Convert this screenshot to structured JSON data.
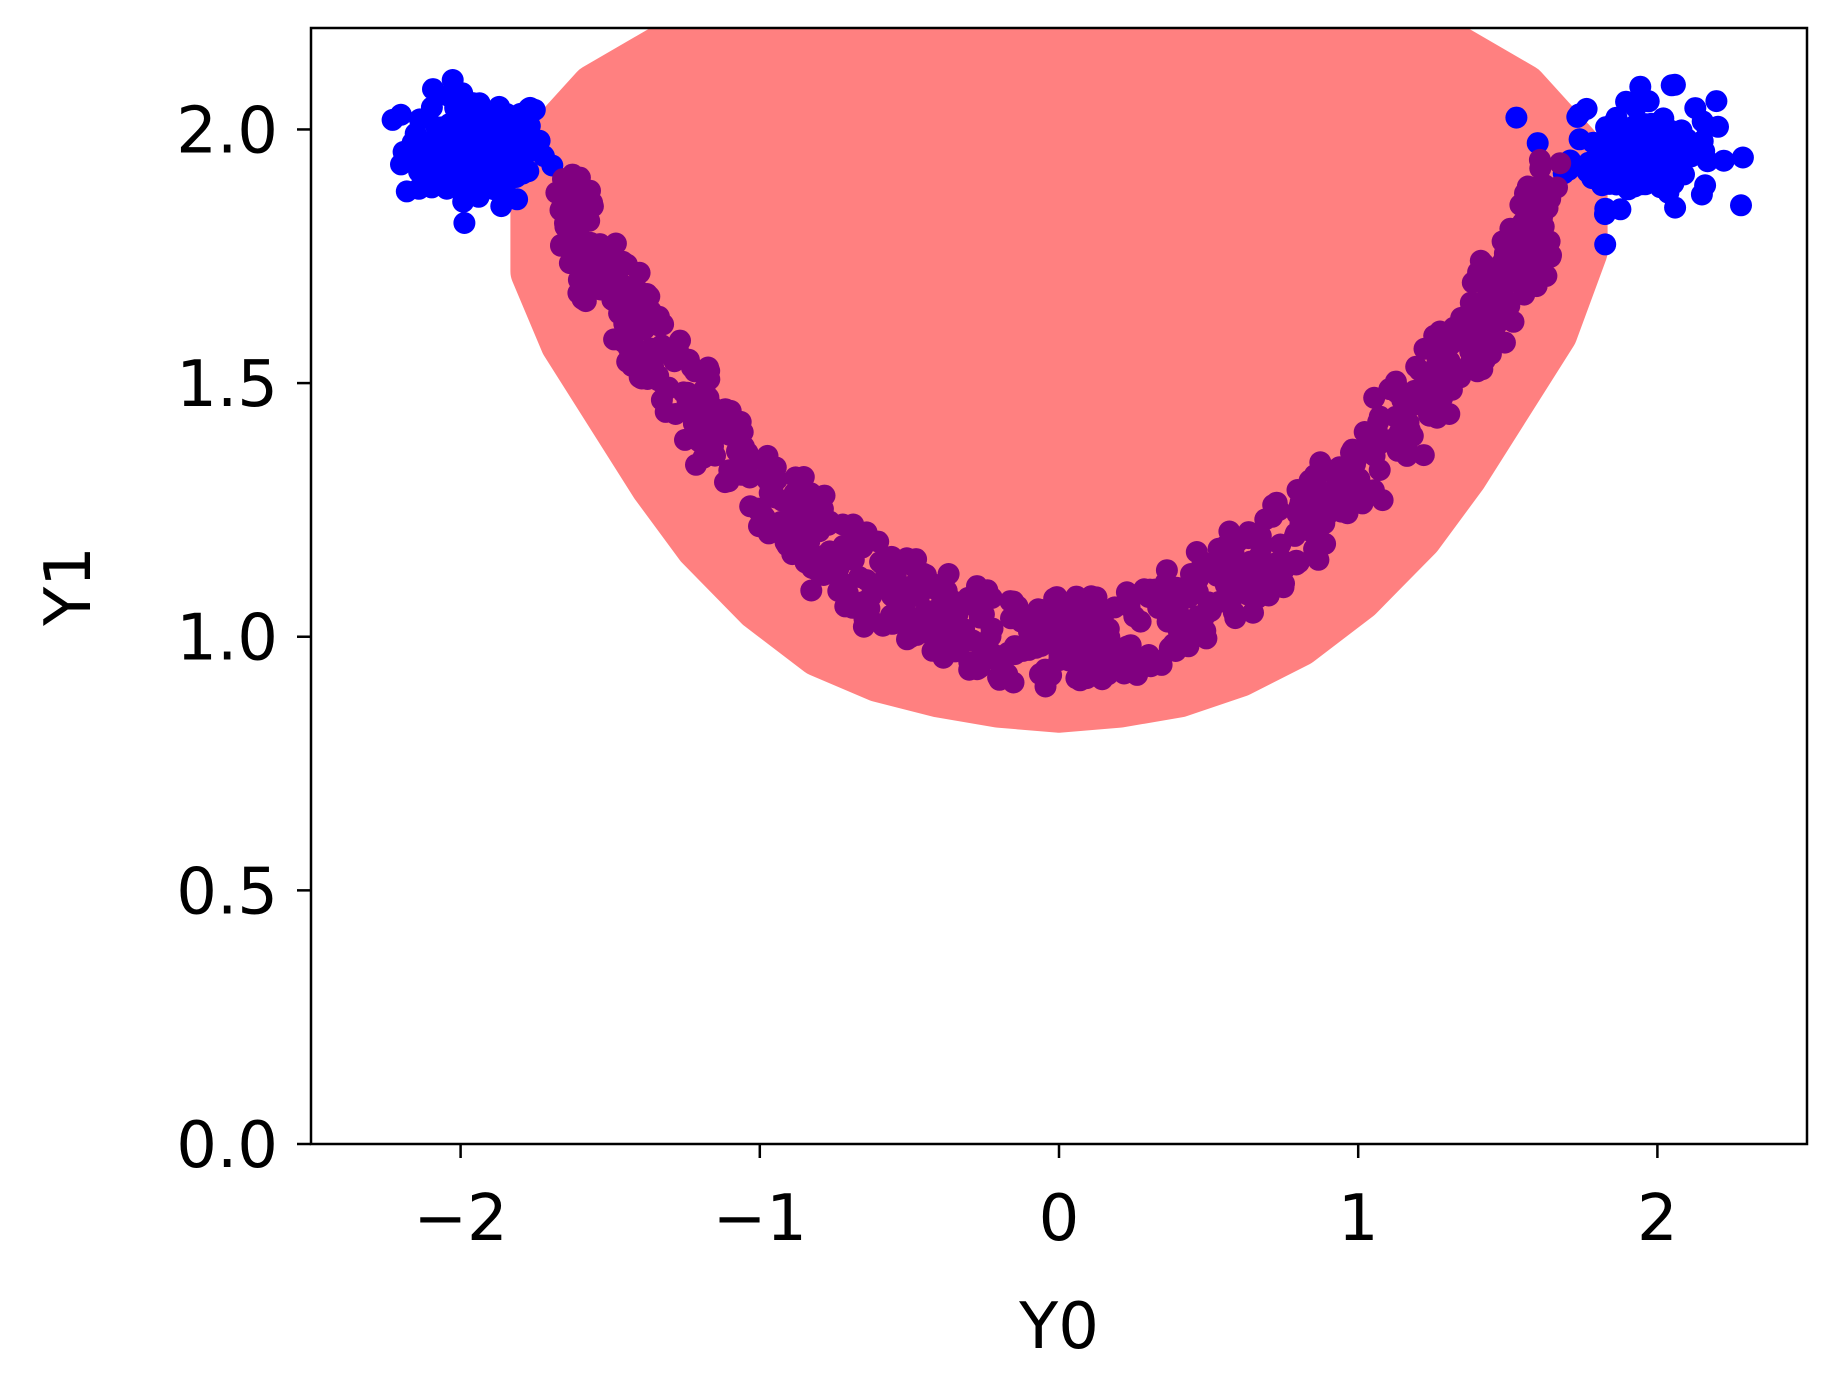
{
  "chart_data": {
    "type": "scatter",
    "title": "",
    "xlabel": "Y0",
    "ylabel": "Y1",
    "xlim": [
      -2.5,
      2.5
    ],
    "ylim": [
      0.0,
      2.2
    ],
    "xticks": [
      -2,
      -1,
      0,
      1,
      2
    ],
    "xtick_labels": [
      "−2",
      "−1",
      "0",
      "1",
      "2"
    ],
    "yticks": [
      0.0,
      0.5,
      1.0,
      1.5,
      2.0
    ],
    "ytick_labels": [
      "0.0",
      "0.5",
      "1.0",
      "1.5",
      "2.0"
    ],
    "grid": false,
    "legend": "none",
    "series": [
      {
        "color": "#ff8080",
        "kind": "filled region",
        "outline": [
          [
            -1.75,
            1.72
          ],
          [
            -1.65,
            1.58
          ],
          [
            -1.5,
            1.44
          ],
          [
            -1.35,
            1.3
          ],
          [
            -1.2,
            1.18
          ],
          [
            -1.0,
            1.06
          ],
          [
            -0.8,
            0.97
          ],
          [
            -0.6,
            0.92
          ],
          [
            -0.4,
            0.89
          ],
          [
            -0.2,
            0.87
          ],
          [
            0.0,
            0.86
          ],
          [
            0.2,
            0.87
          ],
          [
            0.4,
            0.89
          ],
          [
            0.6,
            0.93
          ],
          [
            0.8,
            0.99
          ],
          [
            1.0,
            1.08
          ],
          [
            1.2,
            1.2
          ],
          [
            1.35,
            1.32
          ],
          [
            1.5,
            1.46
          ],
          [
            1.65,
            1.6
          ],
          [
            1.75,
            1.76
          ],
          [
            1.75,
            1.95
          ],
          [
            1.55,
            2.08
          ],
          [
            1.2,
            2.2
          ],
          [
            -1.2,
            2.2
          ],
          [
            -1.55,
            2.08
          ],
          [
            -1.75,
            1.95
          ]
        ]
      },
      {
        "color": "#0000ff",
        "kind": "points",
        "clusters": [
          {
            "center": [
              -1.95,
              1.96
            ],
            "spread": [
              0.22,
              0.1
            ]
          },
          {
            "center": [
              1.95,
              1.96
            ],
            "spread": [
              0.22,
              0.1
            ]
          }
        ]
      },
      {
        "color": "#800080",
        "kind": "points",
        "curve": [
          [
            -1.65,
            1.84
          ],
          [
            -1.55,
            1.74
          ],
          [
            -1.4,
            1.6
          ],
          [
            -1.2,
            1.44
          ],
          [
            -1.0,
            1.3
          ],
          [
            -0.8,
            1.18
          ],
          [
            -0.6,
            1.1
          ],
          [
            -0.4,
            1.04
          ],
          [
            -0.2,
            1.0
          ],
          [
            0.0,
            0.99
          ],
          [
            0.2,
            1.0
          ],
          [
            0.4,
            1.05
          ],
          [
            0.6,
            1.12
          ],
          [
            0.8,
            1.21
          ],
          [
            1.0,
            1.32
          ],
          [
            1.2,
            1.46
          ],
          [
            1.4,
            1.62
          ],
          [
            1.55,
            1.76
          ],
          [
            1.65,
            1.86
          ]
        ],
        "band_width_y": 0.18
      }
    ]
  }
}
